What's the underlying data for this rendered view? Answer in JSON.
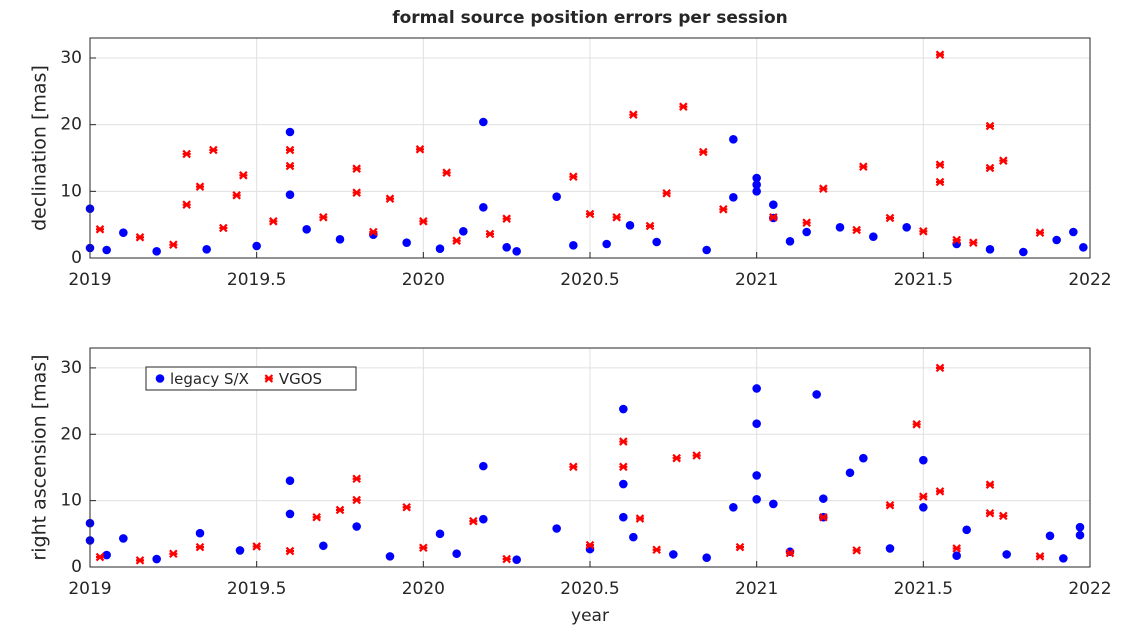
{
  "chart_data": [
    {
      "type": "scatter",
      "title": "formal source position errors per session",
      "ylabel": "declination [mas]",
      "xlim": [
        2019,
        2022
      ],
      "xticks": [
        2019,
        2019.5,
        2020,
        2020.5,
        2021,
        2021.5,
        2022
      ],
      "ylim": [
        0,
        33
      ],
      "yticks": [
        0,
        10,
        20,
        30
      ],
      "grid": true,
      "series": [
        {
          "name": "legacy S/X",
          "color": "#0000ff",
          "marker": "circle",
          "x": [
            2019.0,
            2019.6,
            2019.6,
            2020.18,
            2020.18,
            2020.4,
            2020.93,
            2020.93,
            2021.0,
            2021.0,
            2021.0,
            2021.05,
            2021.05,
            2019.0,
            2019.05,
            2019.1,
            2019.2,
            2019.35,
            2019.5,
            2019.65,
            2019.75,
            2019.85,
            2019.95,
            2020.05,
            2020.12,
            2020.25,
            2020.28,
            2020.45,
            2020.55,
            2020.62,
            2020.7,
            2020.85,
            2021.1,
            2021.15,
            2021.25,
            2021.35,
            2021.45,
            2021.6,
            2021.7,
            2021.8,
            2021.9,
            2021.95,
            2021.98
          ],
          "y": [
            7.4,
            18.9,
            9.5,
            20.4,
            7.6,
            9.2,
            17.8,
            9.1,
            12.0,
            11.0,
            10.0,
            8.0,
            6.0,
            1.5,
            1.2,
            3.8,
            1.0,
            1.3,
            1.8,
            4.3,
            2.8,
            3.5,
            2.3,
            1.4,
            4.0,
            1.6,
            1.0,
            1.9,
            2.1,
            4.9,
            2.4,
            1.2,
            2.5,
            3.9,
            4.6,
            3.2,
            4.6,
            2.1,
            1.3,
            0.9,
            2.7,
            3.9,
            1.6
          ]
        },
        {
          "name": "VGOS",
          "color": "#ff0000",
          "marker": "x",
          "x": [
            2019.29,
            2019.37,
            2019.33,
            2019.29,
            2019.46,
            2019.44,
            2019.6,
            2019.6,
            2019.8,
            2019.8,
            2019.9,
            2019.99,
            2020.07,
            2020.45,
            2020.63,
            2020.78,
            2020.84,
            2020.73,
            2021.2,
            2021.32,
            2021.55,
            2021.55,
            2021.55,
            2021.7,
            2021.7,
            2021.74,
            2019.03,
            2019.15,
            2019.25,
            2019.4,
            2019.55,
            2019.7,
            2019.85,
            2020.0,
            2020.1,
            2020.2,
            2020.25,
            2020.5,
            2020.58,
            2020.68,
            2020.9,
            2021.05,
            2021.15,
            2021.3,
            2021.4,
            2021.5,
            2021.6,
            2021.65,
            2021.85
          ],
          "y": [
            15.6,
            16.2,
            10.7,
            8.0,
            12.4,
            9.4,
            16.2,
            13.8,
            13.4,
            9.8,
            8.9,
            16.3,
            12.8,
            12.2,
            21.5,
            22.7,
            15.9,
            9.7,
            10.4,
            13.7,
            30.5,
            14.0,
            11.4,
            19.8,
            13.5,
            14.6,
            4.3,
            3.1,
            2.0,
            4.5,
            5.5,
            6.1,
            3.9,
            5.5,
            2.6,
            3.6,
            5.9,
            6.6,
            6.1,
            4.8,
            7.3,
            6.1,
            5.3,
            4.2,
            6.0,
            4.0,
            2.7,
            2.3,
            3.8
          ]
        }
      ]
    },
    {
      "type": "scatter",
      "xlabel": "year",
      "ylabel": "right ascension [mas]",
      "xlim": [
        2019,
        2022
      ],
      "xticks": [
        2019,
        2019.5,
        2020,
        2020.5,
        2021,
        2021.5,
        2022
      ],
      "ylim": [
        0,
        33
      ],
      "yticks": [
        0,
        10,
        20,
        30
      ],
      "grid": true,
      "legend": "upper left",
      "series": [
        {
          "name": "legacy S/X",
          "color": "#0000ff",
          "marker": "circle",
          "x": [
            2019.0,
            2019.0,
            2019.1,
            2019.33,
            2019.6,
            2019.6,
            2019.8,
            2020.05,
            2020.18,
            2020.18,
            2020.4,
            2020.6,
            2020.6,
            2020.6,
            2020.63,
            2020.93,
            2021.0,
            2021.0,
            2021.0,
            2021.0,
            2021.05,
            2021.18,
            2021.2,
            2021.2,
            2021.28,
            2021.32,
            2021.5,
            2021.5,
            2021.63,
            2021.88,
            2021.97,
            2021.97,
            2019.05,
            2019.2,
            2019.45,
            2019.7,
            2019.9,
            2020.1,
            2020.28,
            2020.5,
            2020.75,
            2020.85,
            2021.1,
            2021.4,
            2021.6,
            2021.75,
            2021.92
          ],
          "y": [
            6.6,
            4.0,
            4.3,
            5.1,
            13.0,
            8.0,
            6.1,
            5.0,
            15.2,
            7.2,
            5.8,
            23.8,
            12.5,
            7.5,
            4.5,
            9.0,
            26.9,
            21.6,
            13.8,
            10.2,
            9.5,
            26.0,
            10.3,
            7.5,
            14.2,
            16.4,
            16.1,
            9.0,
            5.6,
            4.7,
            6.0,
            4.8,
            1.8,
            1.2,
            2.5,
            3.2,
            1.6,
            2.0,
            1.1,
            2.7,
            1.9,
            1.4,
            2.3,
            2.8,
            1.7,
            1.9,
            1.3
          ]
        },
        {
          "name": "VGOS",
          "color": "#ff0000",
          "marker": "x",
          "x": [
            2019.33,
            2019.68,
            2019.75,
            2019.8,
            2019.8,
            2019.95,
            2020.15,
            2020.45,
            2020.6,
            2020.6,
            2020.65,
            2020.76,
            2020.82,
            2021.2,
            2021.4,
            2021.48,
            2021.55,
            2021.55,
            2021.5,
            2021.7,
            2021.7,
            2021.74,
            2019.03,
            2019.15,
            2019.25,
            2019.5,
            2019.6,
            2020.0,
            2020.25,
            2020.5,
            2020.7,
            2020.95,
            2021.1,
            2021.3,
            2021.6,
            2021.85
          ],
          "y": [
            3.0,
            7.5,
            8.6,
            13.3,
            10.1,
            9.0,
            6.9,
            15.1,
            18.9,
            15.1,
            7.3,
            16.4,
            16.8,
            7.5,
            9.3,
            21.5,
            30.0,
            11.4,
            10.6,
            12.4,
            8.1,
            7.7,
            1.5,
            1.0,
            2.0,
            3.1,
            2.4,
            2.9,
            1.2,
            3.3,
            2.6,
            3.0,
            2.1,
            2.5,
            2.8,
            1.6
          ]
        }
      ]
    }
  ]
}
